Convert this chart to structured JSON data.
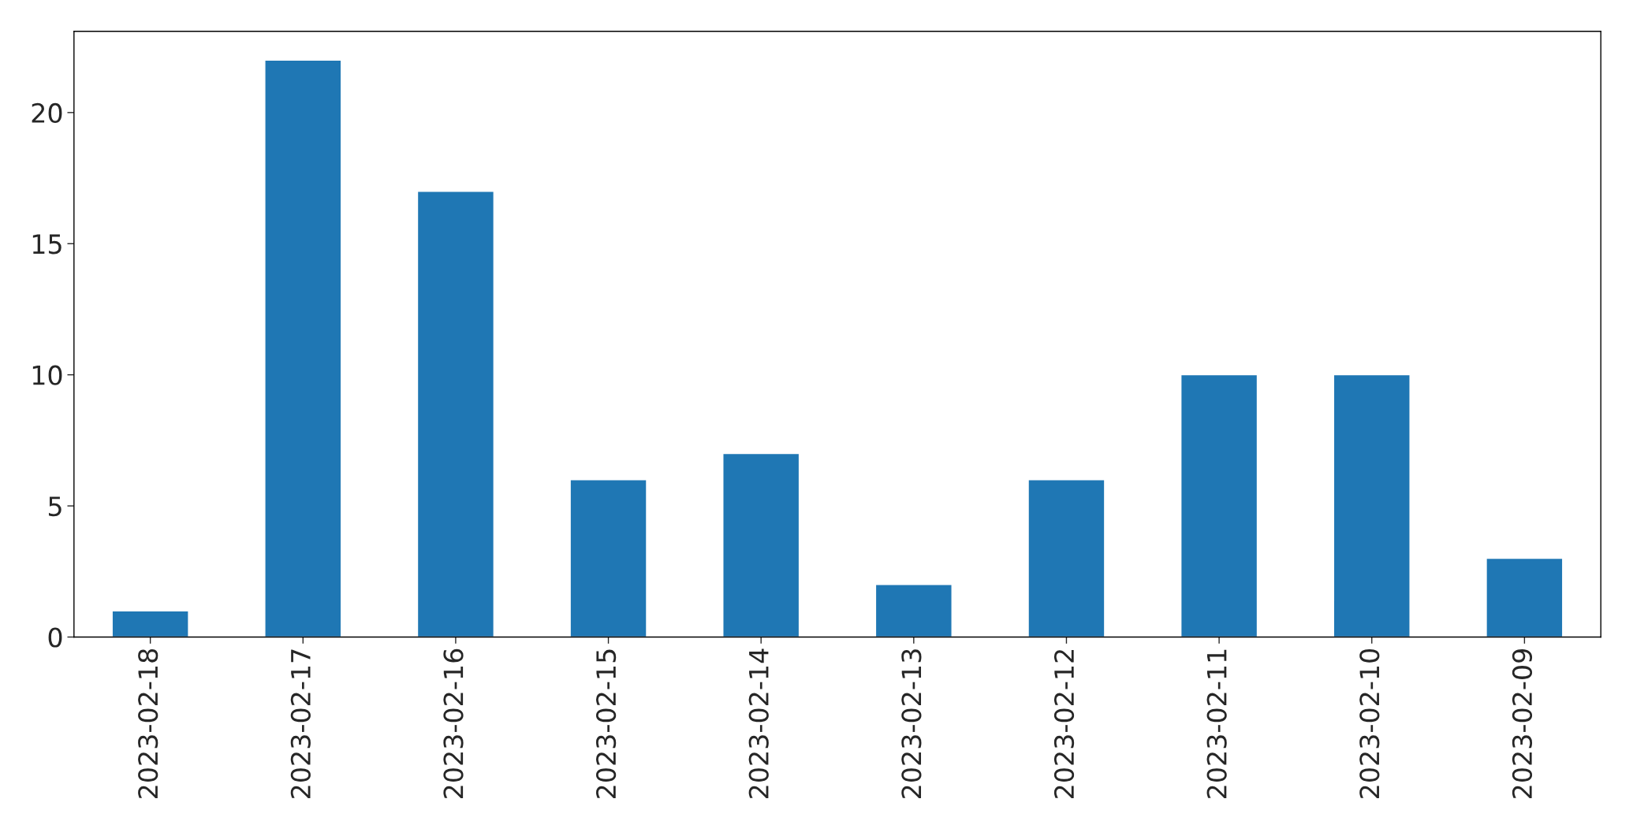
{
  "chart_data": {
    "type": "bar",
    "categories": [
      "2023-02-18",
      "2023-02-17",
      "2023-02-16",
      "2023-02-15",
      "2023-02-14",
      "2023-02-13",
      "2023-02-12",
      "2023-02-11",
      "2023-02-10",
      "2023-02-09"
    ],
    "values": [
      1,
      22,
      17,
      6,
      7,
      2,
      6,
      10,
      10,
      3
    ],
    "color": "#1f77b4",
    "ylim": [
      0,
      23.1
    ],
    "yticks": [
      0,
      5,
      10,
      15,
      20
    ],
    "grid": false
  }
}
